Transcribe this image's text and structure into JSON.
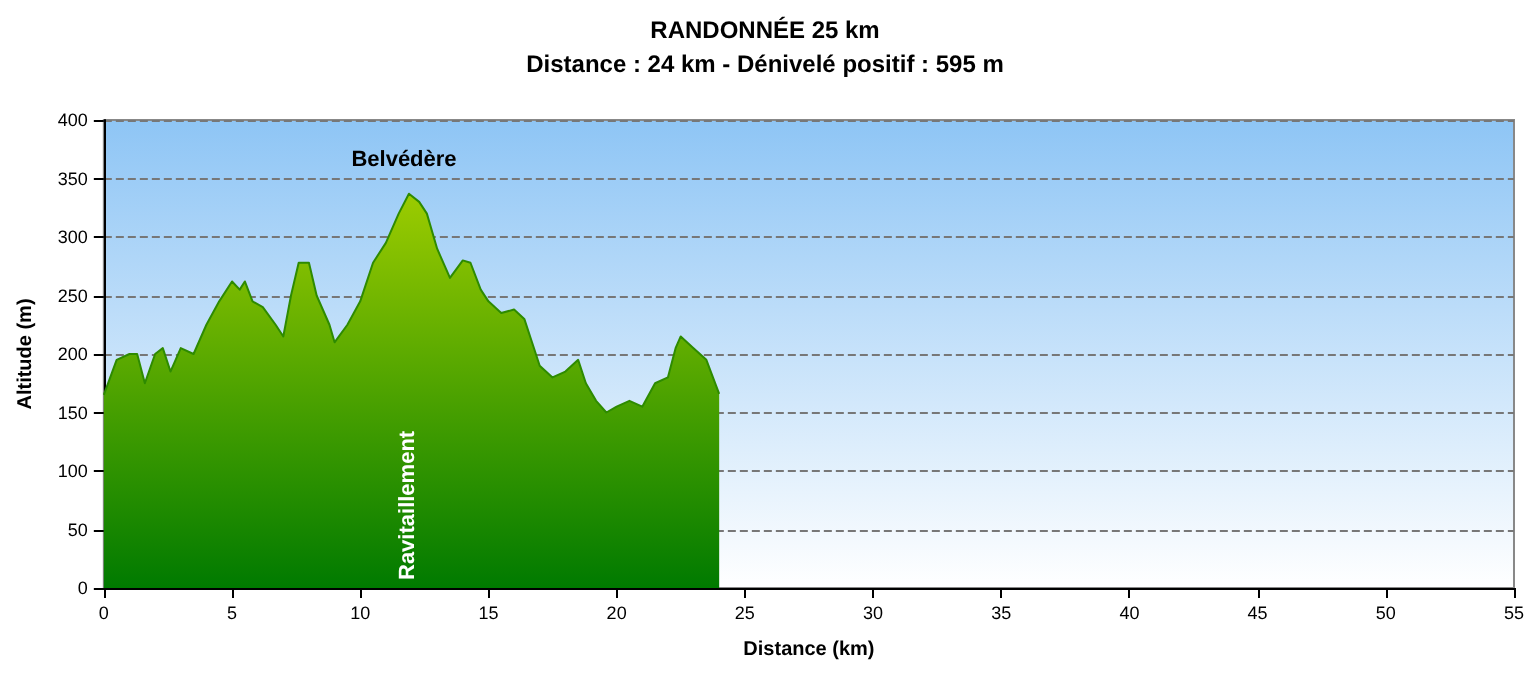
{
  "chart_data": {
    "type": "area",
    "title": "RANDONNÉE 25 km",
    "subtitle": "Distance : 24 km - Dénivelé positif : 595 m",
    "xlabel": "Distance (km)",
    "ylabel": "Altitude (m)",
    "x": [
      0,
      0.5,
      1,
      1.3,
      1.6,
      2,
      2.3,
      2.6,
      3,
      3.5,
      4,
      4.5,
      5,
      5.3,
      5.5,
      5.8,
      6.2,
      6.7,
      7,
      7.3,
      7.6,
      8,
      8.3,
      8.8,
      9,
      9.5,
      10,
      10.5,
      11,
      11.5,
      11.9,
      12.3,
      12.6,
      13,
      13.5,
      14,
      14.3,
      14.7,
      15,
      15.5,
      16,
      16.4,
      16.7,
      17,
      17.5,
      18,
      18.5,
      18.8,
      19.2,
      19.6,
      20,
      20.5,
      21,
      21.5,
      22,
      22.3,
      22.5,
      23,
      23.5,
      24
    ],
    "series": [
      {
        "color": "#2e8b00",
        "values": [
          165,
          195,
          200,
          200,
          175,
          200,
          205,
          185,
          205,
          200,
          225,
          245,
          262,
          255,
          262,
          245,
          240,
          225,
          215,
          250,
          278,
          278,
          250,
          225,
          210,
          225,
          245,
          278,
          295,
          320,
          337,
          330,
          320,
          290,
          265,
          280,
          278,
          255,
          245,
          235,
          238,
          230,
          210,
          190,
          180,
          185,
          195,
          175,
          160,
          150,
          155,
          160,
          155,
          175,
          180,
          205,
          215,
          205,
          195,
          166
        ]
      }
    ],
    "xlim": [
      0,
      55
    ],
    "xticks": [
      0,
      5,
      10,
      15,
      20,
      25,
      30,
      35,
      40,
      45,
      50,
      55
    ],
    "ylim": [
      0,
      400
    ],
    "yticks": [
      0,
      50,
      100,
      150,
      200,
      250,
      300,
      350,
      400
    ],
    "grid": "y",
    "line_style": "dashed",
    "marker": "none",
    "annotations": [
      "Belvédère",
      "Ravitaillement"
    ]
  }
}
